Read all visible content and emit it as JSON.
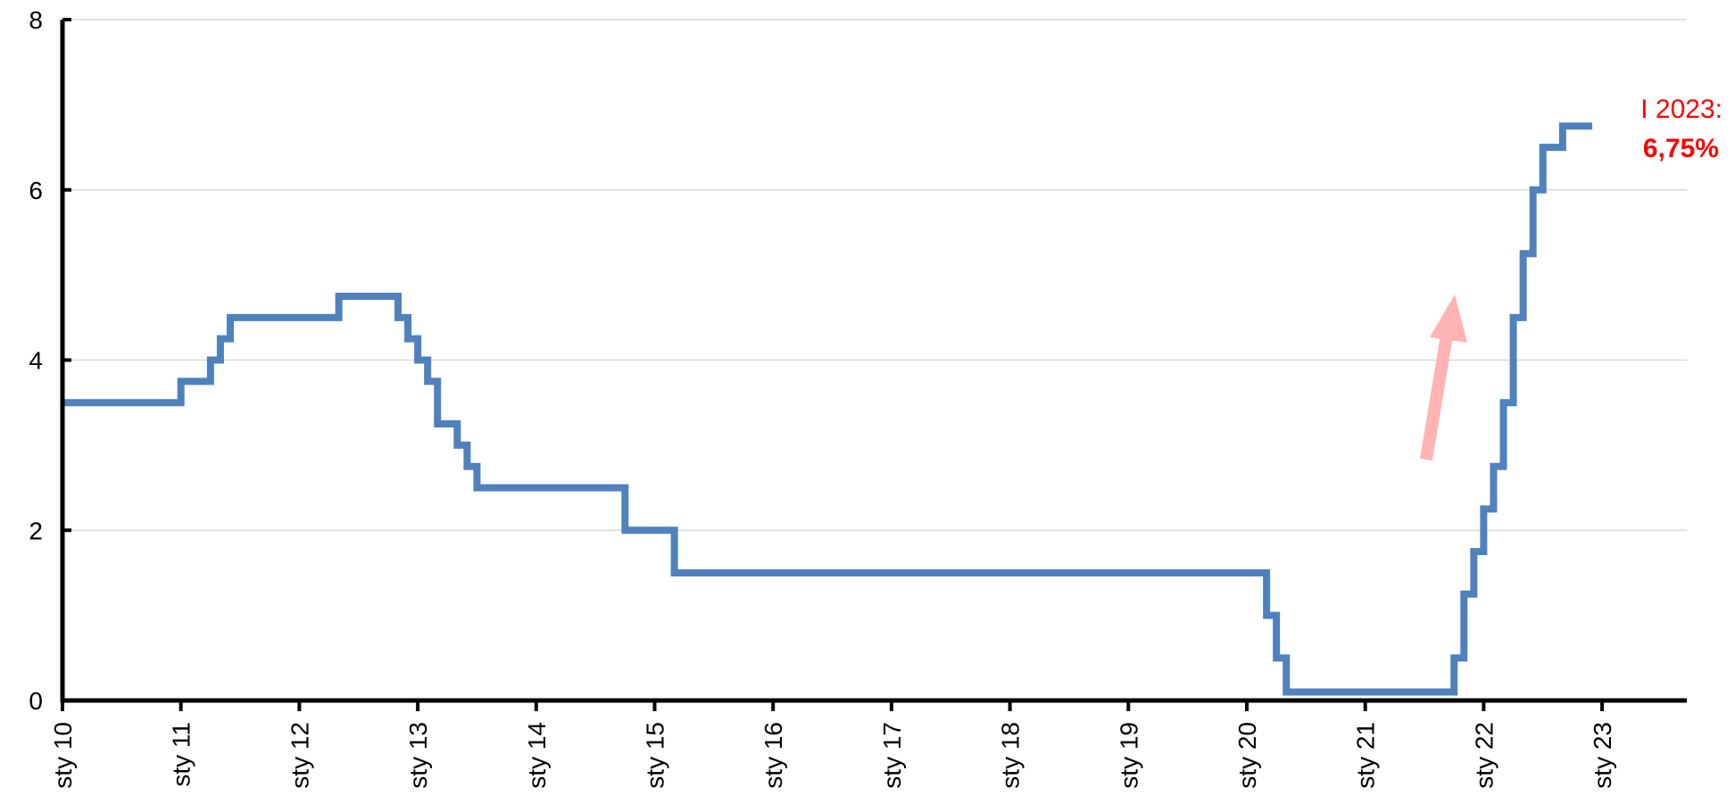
{
  "chart_data": {
    "type": "line",
    "step": true,
    "title": "",
    "xlabel": "",
    "ylabel": "",
    "ylim": [
      0,
      8
    ],
    "yticks": [
      "0",
      "2",
      "4",
      "6",
      "8"
    ],
    "x_tick_labels": [
      "sty 10",
      "sty 11",
      "sty 12",
      "sty 13",
      "sty 14",
      "sty 15",
      "sty 16",
      "sty 17",
      "sty 18",
      "sty 19",
      "sty 20",
      "sty 21",
      "sty 22",
      "sty 23"
    ],
    "x_range": [
      "2010-01",
      "2023-12"
    ],
    "grid": "horizontal",
    "line_color": "#4f81bd",
    "series": [
      {
        "points": [
          {
            "date": "2010-01",
            "value": 3.5
          },
          {
            "date": "2011-01",
            "value": 3.75
          },
          {
            "date": "2011-04",
            "value": 4.0
          },
          {
            "date": "2011-05",
            "value": 4.25
          },
          {
            "date": "2011-06",
            "value": 4.5
          },
          {
            "date": "2012-05",
            "value": 4.75
          },
          {
            "date": "2012-11",
            "value": 4.5
          },
          {
            "date": "2012-12",
            "value": 4.25
          },
          {
            "date": "2013-01",
            "value": 4.0
          },
          {
            "date": "2013-02",
            "value": 3.75
          },
          {
            "date": "2013-03",
            "value": 3.25
          },
          {
            "date": "2013-05",
            "value": 3.0
          },
          {
            "date": "2013-06",
            "value": 2.75
          },
          {
            "date": "2013-07",
            "value": 2.5
          },
          {
            "date": "2014-10",
            "value": 2.0
          },
          {
            "date": "2015-03",
            "value": 1.5
          },
          {
            "date": "2020-03",
            "value": 1.0
          },
          {
            "date": "2020-04",
            "value": 0.5
          },
          {
            "date": "2020-05",
            "value": 0.1
          },
          {
            "date": "2021-10",
            "value": 0.5
          },
          {
            "date": "2021-11",
            "value": 1.25
          },
          {
            "date": "2021-12",
            "value": 1.75
          },
          {
            "date": "2022-01",
            "value": 2.25
          },
          {
            "date": "2022-02",
            "value": 2.75
          },
          {
            "date": "2022-03",
            "value": 3.5
          },
          {
            "date": "2022-04",
            "value": 4.5
          },
          {
            "date": "2022-05",
            "value": 5.25
          },
          {
            "date": "2022-06",
            "value": 6.0
          },
          {
            "date": "2022-07",
            "value": 6.5
          },
          {
            "date": "2022-09",
            "value": 6.75
          },
          {
            "date": "2022-12",
            "value": 6.75
          }
        ]
      }
    ],
    "annotation": {
      "label": "I 2023:",
      "value": "6,75%",
      "color": "#ff0000"
    },
    "arrow_color": "#ffb3b3"
  }
}
